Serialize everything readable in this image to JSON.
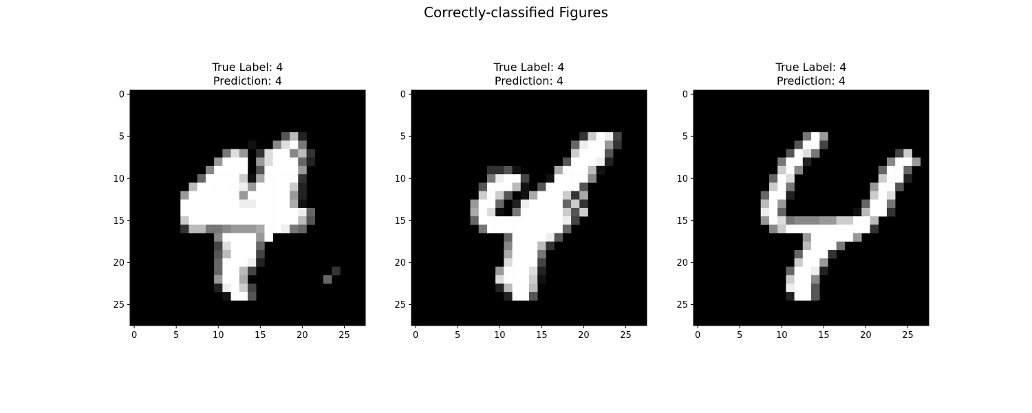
{
  "figure": {
    "title": "Correctly-classified Figures"
  },
  "chart_data": [
    {
      "type": "heatmap",
      "title_lines": [
        "True Label: 4",
        "Prediction: 4"
      ],
      "x_ticks": [
        "0",
        "5",
        "10",
        "15",
        "20",
        "25"
      ],
      "y_ticks": [
        "0",
        "5",
        "10",
        "15",
        "20",
        "25"
      ],
      "grid_size": [
        28,
        28
      ],
      "colormap": "gray",
      "value_range": [
        0,
        255
      ],
      "pixels": [
        "",
        "",
        "",
        "",
        "",
        "..................5B2.....",
        "..............1..8DF7.....",
        "...........7D9.3DFF8B3....",
        "..........9FFF.9DFFF62....",
        ".........8FFFF.5FFFF9.....",
        "........6FFFFC1AFFFF3.....",
        ".......BFFFFFE9FFFFC2.....",
        "......9FFFFFF9FFFFF92.....",
        "......FFFFFFFEEFFFFA1.....",
        "......FFFFFFFFFFFFFFE6....",
        "......CFFFFFFFFFFFFFB5....",
        "......3BB778999AFFE76.....",
        "..........8FFFF9F.........",
        "..........4DFFF6..........",
        "..........5BFFF4..........",
        "..........6FFFE2..........",
        "..........6FFB4.........3.",
        "..........9FFA.........6..",
        "..........2EFC4..........",
        "...........1FF5..........."
      ]
    },
    {
      "type": "heatmap",
      "title_lines": [
        "True Label: 4",
        "Prediction: 4"
      ],
      "x_ticks": [
        "0",
        "5",
        "10",
        "15",
        "20",
        "25"
      ],
      "y_ticks": [
        "0",
        "5",
        "10",
        "15",
        "20",
        "25"
      ],
      "grid_size": [
        28,
        28
      ],
      "colormap": "gray",
      "value_range": [
        0,
        255
      ],
      "pixels": [
        "",
        "",
        "",
        "",
        "",
        "....................3CFE4.....",
        "...................6EFF93.....",
        "...................CFFF5......",
        "..................5FFFE2......",
        ".........3351....AFFFB1.......",
        ".........7EFF4..1FFFF8........",
        "........5FFFB1.5FFFF5.........",
        "........CFC5.1AFFFC3A.........",
        ".......9FF6.2EFFFF6C3.........",
        ".......AFD1.7FFFFFC5C.........",
        ".......6FFFFFFFFFFE4..........",
        "........7FFFFFFFFF6...........",
        "...........6FFFFE5............",
        "...........8FFFB3.............",
        "...........AFFF7..............",
        "...........DFFF4..............",
        "..........9FFFD2..............",
        "..........DFFFC1..............",
        "..........2BFFB...............",
        "...........2FF5..............."
      ]
    },
    {
      "type": "heatmap",
      "title_lines": [
        "True Label: 4",
        "Prediction: 4"
      ],
      "x_ticks": [
        "0",
        "5",
        "10",
        "15",
        "20",
        "25"
      ],
      "y_ticks": [
        "0",
        "5",
        "10",
        "15",
        "20",
        "25"
      ],
      "grid_size": [
        28,
        28
      ],
      "colormap": "gray",
      "value_range": [
        0,
        255
      ],
      "pixels": [
        "",
        "",
        "",
        "",
        "",
        ".............7F9..............",
        "............5FF4..............",
        "...........5FD7.........4C....",
        "..........7FF2.........8FF9...",
        "..........CF8.........6FF6....",
        ".........6FD..........CFF2....",
        ".........CF7.........9FF5.....",
        "........6FF2.........CFD......",
        "........BF9.........6FF7......",
        "........EF6........1BFF3......",
        "........9FD788899CCFFB........",
        ".........8CFFFFFFFFFF3........",
        ".............9FFFFF9..........",
        ".............BFFF7............",
        "............6FFF3.............",
        "............CFF9..............",
        "...........6FFE2..............",
        "...........CFF8...............",
        "...........EFF5...............",
        "...........2FF5..............."
      ]
    }
  ]
}
